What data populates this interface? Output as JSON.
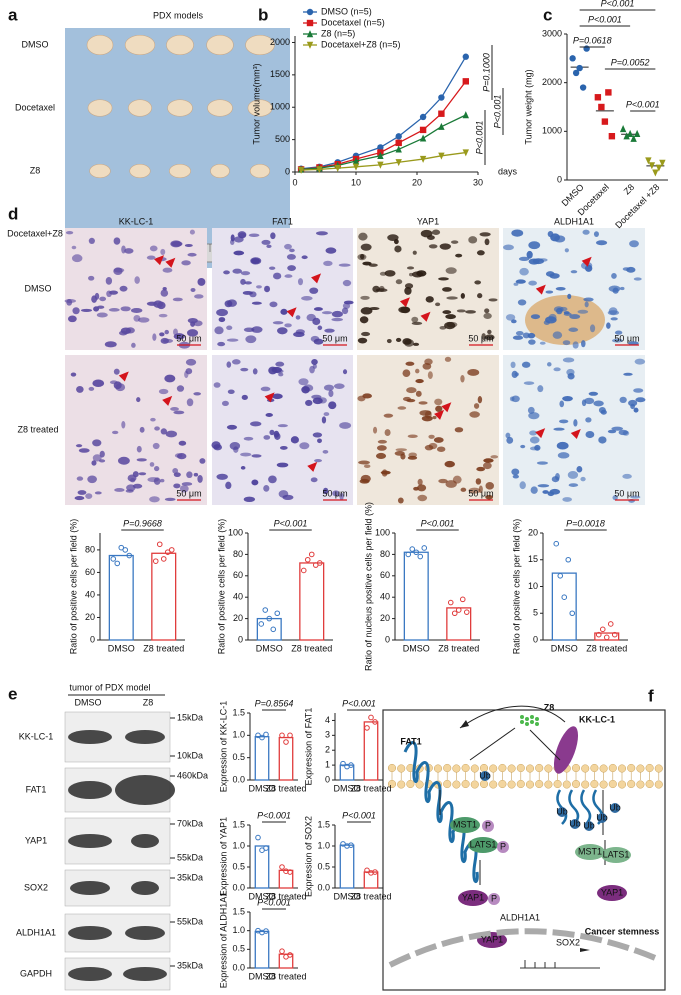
{
  "panel_labels": [
    "a",
    "b",
    "c",
    "d",
    "e",
    "f"
  ],
  "panel_a": {
    "title": "PDX models",
    "rows": [
      "DMSO",
      "Docetaxel",
      "Z8",
      "Docetaxel+Z8"
    ]
  },
  "panel_d": {
    "columns": [
      "KK-LC-1",
      "FAT1",
      "YAP1",
      "ALDH1A1"
    ],
    "rows": [
      "DMSO",
      "Z8 treated"
    ],
    "scale_bar": "50 μm"
  },
  "panel_e": {
    "header": "tumor of PDX model",
    "lanes": [
      "DMSO",
      "Z8"
    ],
    "rows": [
      {
        "label": "KK-LC-1",
        "kda": [
          "15kDa",
          "10kDa"
        ]
      },
      {
        "label": "FAT1",
        "kda": [
          "460kDa"
        ]
      },
      {
        "label": "YAP1",
        "kda": [
          "70kDa",
          "55kDa"
        ]
      },
      {
        "label": "SOX2",
        "kda": [
          "35kDa"
        ]
      },
      {
        "label": "ALDH1A1",
        "kda": [
          "55kDa"
        ]
      },
      {
        "label": "GAPDH",
        "kda": [
          "35kDa"
        ]
      }
    ]
  },
  "panel_f": {
    "texts": [
      "FAT1",
      "Z8",
      "KK-LC-1",
      "MST1",
      "P",
      "LATS1",
      "P",
      "MST1",
      "LATS1",
      "YAP1",
      "P",
      "YAP1",
      "ALDH1A1",
      "YAP1",
      "SOX2",
      "Cancer stemness",
      "Ub",
      "Ub",
      "Ub",
      "Ub",
      "Ub",
      "Ub"
    ]
  },
  "chart_data": [
    {
      "type": "line",
      "y_label": "Tumor volume(mm³)",
      "x_label": "days",
      "x": [
        1,
        4,
        7,
        10,
        14,
        17,
        21,
        24,
        28
      ],
      "series": [
        {
          "name": "DMSO (n=5)",
          "color": "#2a64ad",
          "marker": "circle",
          "values": [
            50,
            80,
            150,
            250,
            380,
            550,
            850,
            1150,
            1780
          ]
        },
        {
          "name": "Docetaxel (n=5)",
          "color": "#d7191c",
          "marker": "square",
          "values": [
            40,
            70,
            120,
            200,
            300,
            450,
            650,
            900,
            1400
          ]
        },
        {
          "name": "Z8 (n=5)",
          "color": "#1a7a38",
          "marker": "triangle",
          "values": [
            40,
            60,
            100,
            170,
            250,
            350,
            520,
            700,
            880
          ]
        },
        {
          "name": "Docetaxel+Z8 (n=5)",
          "color": "#9a9a1c",
          "marker": "triangle-down",
          "values": [
            30,
            40,
            60,
            80,
            110,
            150,
            200,
            250,
            300
          ]
        }
      ],
      "xlim": [
        0,
        30
      ],
      "xticks": [
        0,
        10,
        20,
        30
      ],
      "ylim": [
        0,
        2100
      ],
      "yticks": [
        0,
        500,
        1000,
        1500,
        2000
      ],
      "legend": "upper left",
      "annotations": [
        "P=0.1000",
        "P<0.001",
        "P<0.001"
      ]
    },
    {
      "type": "dot",
      "y_label": "Tumor weight (mg)",
      "categories": [
        "DMSO",
        "Docetaxel",
        "Z8",
        "Docetaxel +Z8"
      ],
      "colors": [
        "#2a64ad",
        "#d7191c",
        "#1a7a38",
        "#9a9a1c"
      ],
      "points": [
        [
          2500,
          2200,
          2300,
          1900,
          2700
        ],
        [
          1700,
          1500,
          1200,
          1800,
          900
        ],
        [
          1050,
          900,
          950,
          850,
          950
        ],
        [
          400,
          300,
          150,
          250,
          350
        ]
      ],
      "means": [
        2320,
        1420,
        940,
        290
      ],
      "ylim": [
        0,
        3000
      ],
      "yticks": [
        0,
        1000,
        2000,
        3000
      ],
      "annotations": [
        "P<0.001",
        "P<0.001",
        "P=0.0618",
        "P=0.0052",
        "P<0.001"
      ]
    },
    {
      "type": "bar",
      "y_label": "Ratio of positive cells per field (%)",
      "categories": [
        "DMSO",
        "Z8 treated"
      ],
      "colors": [
        "#3a78c2",
        "#e03c3c"
      ],
      "values": [
        75,
        77
      ],
      "points": [
        [
          72,
          68,
          82,
          80,
          75
        ],
        [
          70,
          85,
          72,
          78,
          80
        ]
      ],
      "ylim": [
        0,
        95
      ],
      "yticks": [
        0,
        20,
        40,
        60,
        80
      ],
      "annotations": [
        "P=0.9668"
      ]
    },
    {
      "type": "bar",
      "y_label": "Ratio of positive cells per field (%)",
      "categories": [
        "DMSO",
        "Z8 treated"
      ],
      "colors": [
        "#3a78c2",
        "#e03c3c"
      ],
      "values": [
        20,
        72
      ],
      "points": [
        [
          15,
          28,
          20,
          10,
          25
        ],
        [
          65,
          75,
          80,
          70,
          72
        ]
      ],
      "ylim": [
        0,
        100
      ],
      "yticks": [
        0,
        20,
        40,
        60,
        80,
        100
      ],
      "annotations": [
        "P<0.001"
      ]
    },
    {
      "type": "bar",
      "y_label": "Ratio of nucleus positive cells per field (%)",
      "categories": [
        "DMSO",
        "Z8 treated"
      ],
      "colors": [
        "#3a78c2",
        "#e03c3c"
      ],
      "values": [
        82,
        30
      ],
      "points": [
        [
          80,
          85,
          82,
          78,
          86
        ],
        [
          35,
          25,
          28,
          38,
          26
        ]
      ],
      "ylim": [
        0,
        100
      ],
      "yticks": [
        0,
        20,
        40,
        60,
        80,
        100
      ],
      "annotations": [
        "P<0.001"
      ]
    },
    {
      "type": "bar",
      "y_label": "Ratio of positive cells per field (%)",
      "categories": [
        "DMSO",
        "Z8 treated"
      ],
      "colors": [
        "#3a78c2",
        "#e03c3c"
      ],
      "values": [
        12.5,
        1.3
      ],
      "points": [
        [
          18,
          12,
          8,
          15,
          5
        ],
        [
          1,
          2,
          0.5,
          3,
          1
        ]
      ],
      "ylim": [
        0,
        20
      ],
      "yticks": [
        0,
        5,
        10,
        15,
        20
      ],
      "annotations": [
        "P=0.0018"
      ]
    },
    {
      "type": "bar",
      "y_label": "Expression of KK-LC-1",
      "categories": [
        "DMSO",
        "Z8 treated"
      ],
      "colors": [
        "#3a78c2",
        "#e03c3c"
      ],
      "values": [
        0.97,
        0.95
      ],
      "points": [
        [
          1,
          0.95,
          1.02
        ],
        [
          1,
          0.85,
          1.0
        ]
      ],
      "ylim": [
        0,
        1.5
      ],
      "yticks": [
        {
          "value": 0,
          "label": "0.0"
        },
        0.5,
        {
          "value": 1,
          "label": "1.0"
        },
        1.5
      ],
      "annotations": [
        "P=0.8564"
      ]
    },
    {
      "type": "bar",
      "y_label": "Expression of FAT1",
      "categories": [
        "DMSO",
        "Z8 treated"
      ],
      "colors": [
        "#3a78c2",
        "#e03c3c"
      ],
      "values": [
        1.0,
        3.9
      ],
      "points": [
        [
          1.1,
          0.9,
          1.0
        ],
        [
          3.5,
          4.2,
          3.9
        ]
      ],
      "ylim": [
        0,
        4.5
      ],
      "yticks": [
        0,
        1,
        2,
        3,
        4
      ],
      "annotations": [
        "P<0.001"
      ]
    },
    {
      "type": "bar",
      "y_label": "Expression of YAP1",
      "categories": [
        "DMSO",
        "Z8 treated"
      ],
      "colors": [
        "#3a78c2",
        "#e03c3c"
      ],
      "values": [
        1.0,
        0.42
      ],
      "points": [
        [
          1.2,
          0.9,
          0.95
        ],
        [
          0.5,
          0.4,
          0.38
        ]
      ],
      "ylim": [
        0,
        1.5
      ],
      "yticks": [
        {
          "value": 0,
          "label": "0.0"
        },
        0.5,
        {
          "value": 1,
          "label": "1.0"
        },
        1.5
      ],
      "annotations": [
        "P<0.001"
      ]
    },
    {
      "type": "bar",
      "y_label": "Expression of SOX2",
      "categories": [
        "DMSO",
        "Z8 treated"
      ],
      "colors": [
        "#3a78c2",
        "#e03c3c"
      ],
      "values": [
        1.02,
        0.38
      ],
      "points": [
        [
          1.05,
          1.0,
          1.02
        ],
        [
          0.42,
          0.36,
          0.38
        ]
      ],
      "ylim": [
        0,
        1.5
      ],
      "yticks": [
        {
          "value": 0,
          "label": "0.0"
        },
        0.5,
        {
          "value": 1,
          "label": "1.0"
        },
        1.5
      ],
      "annotations": [
        "P<0.001"
      ]
    },
    {
      "type": "bar",
      "y_label": "Expression of ALDH1A1",
      "categories": [
        "DMSO",
        "Z8 treated"
      ],
      "colors": [
        "#3a78c2",
        "#e03c3c"
      ],
      "values": [
        0.98,
        0.37
      ],
      "points": [
        [
          1.0,
          0.95,
          0.99
        ],
        [
          0.45,
          0.3,
          0.35
        ]
      ],
      "ylim": [
        0,
        1.5
      ],
      "yticks": [
        {
          "value": 0,
          "label": "0.0"
        },
        0.5,
        {
          "value": 1,
          "label": "1.0"
        },
        1.5
      ],
      "annotations": [
        "P<0.001"
      ]
    }
  ]
}
